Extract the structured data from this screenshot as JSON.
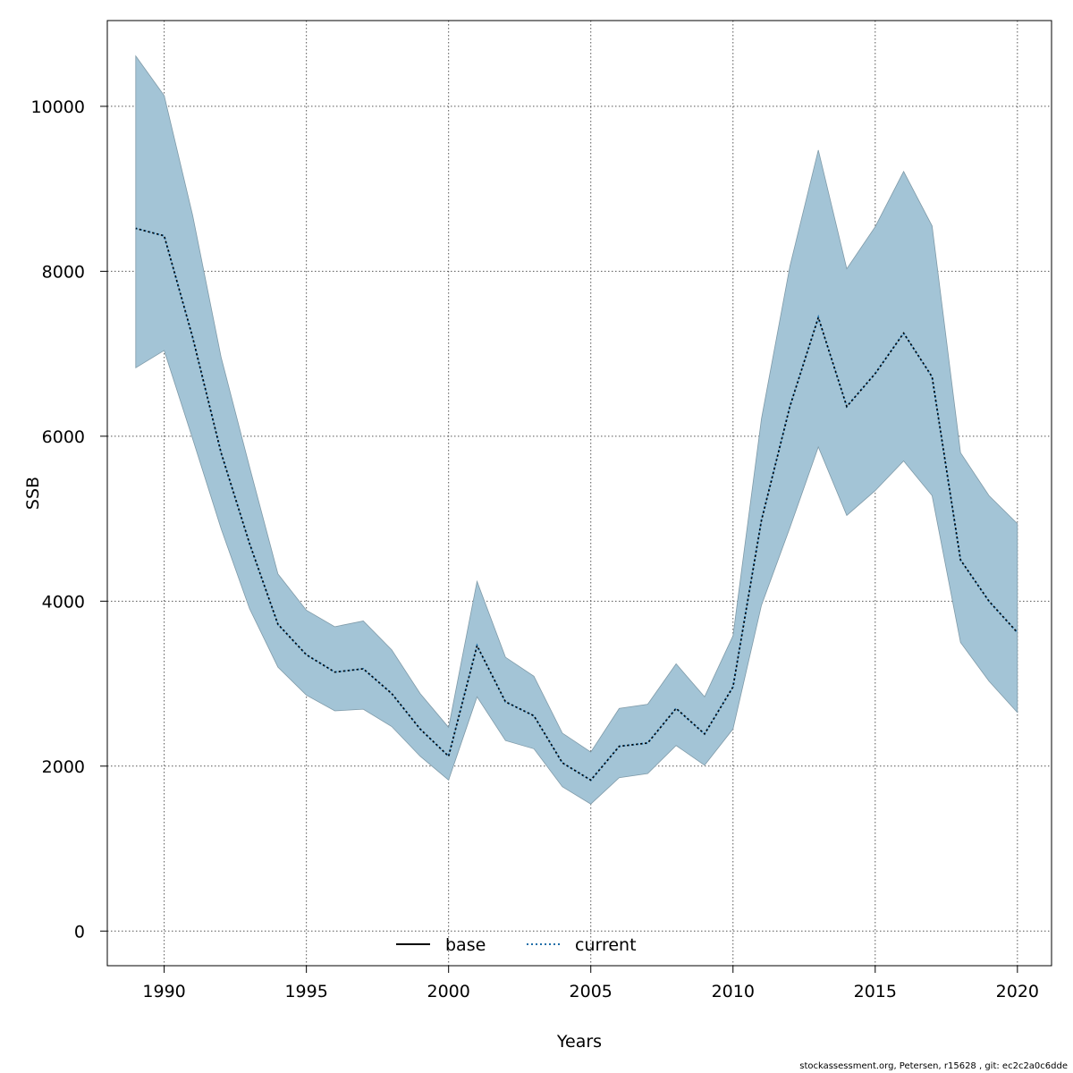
{
  "chart_data": {
    "type": "line",
    "xlabel": "Years",
    "ylabel": "SSB",
    "xlim": [
      1988,
      2021.2
    ],
    "ylim": [
      -420,
      11040
    ],
    "x_ticks": [
      1990,
      1995,
      2000,
      2005,
      2010,
      2015,
      2020
    ],
    "y_ticks": [
      0,
      2000,
      4000,
      6000,
      8000,
      10000
    ],
    "grid": true,
    "legend_placement": "bottom",
    "band_color": "#a3c4d6",
    "band_edge_color": "#7f9aa8",
    "x": [
      1989,
      1990,
      1991,
      1992,
      1993,
      1994,
      1995,
      1996,
      1997,
      1998,
      1999,
      2000,
      2001,
      2002,
      2003,
      2004,
      2005,
      2006,
      2007,
      2008,
      2009,
      2010,
      2011,
      2012,
      2013,
      2014,
      2015,
      2016,
      2017,
      2018,
      2019,
      2020
    ],
    "series": [
      {
        "name": "base",
        "line_style": "solid",
        "color": "#000000",
        "values": [
          8520,
          8430,
          7200,
          5800,
          4700,
          3720,
          3350,
          3140,
          3180,
          2880,
          2450,
          2120,
          3460,
          2780,
          2610,
          2040,
          1830,
          2240,
          2280,
          2700,
          2390,
          2960,
          4980,
          6360,
          7440,
          6360,
          6760,
          7250,
          6720,
          4500,
          4000,
          3620
        ]
      },
      {
        "name": "current",
        "line_style": "dotted",
        "color": "#1f6fa8",
        "values": [
          8520,
          8430,
          7200,
          5800,
          4700,
          3720,
          3350,
          3140,
          3180,
          2880,
          2450,
          2120,
          3460,
          2780,
          2610,
          2040,
          1830,
          2240,
          2280,
          2700,
          2390,
          2960,
          4980,
          6360,
          7440,
          6360,
          6760,
          7250,
          6720,
          4500,
          4000,
          3620
        ]
      }
    ],
    "band": {
      "upper": [
        10610,
        10130,
        8680,
        6960,
        5630,
        4330,
        3890,
        3690,
        3760,
        3410,
        2880,
        2470,
        4240,
        3320,
        3090,
        2400,
        2170,
        2700,
        2750,
        3240,
        2840,
        3580,
        6210,
        8060,
        9470,
        8030,
        8540,
        9210,
        8550,
        5800,
        5280,
        4940
      ],
      "lower": [
        6830,
        7040,
        5970,
        4880,
        3910,
        3200,
        2860,
        2670,
        2690,
        2480,
        2120,
        1830,
        2840,
        2310,
        2210,
        1750,
        1540,
        1860,
        1910,
        2250,
        2010,
        2450,
        3950,
        4890,
        5870,
        5040,
        5340,
        5700,
        5280,
        3500,
        3030,
        2650
      ]
    }
  },
  "footer": "stockassessment.org, Petersen, r15628 , git: ec2c2a0c6dde"
}
